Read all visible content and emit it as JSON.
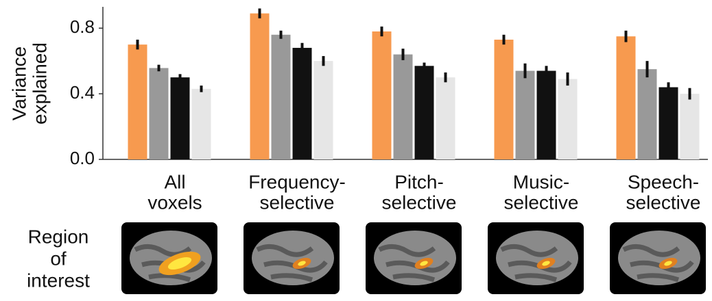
{
  "chart_data": {
    "type": "bar",
    "ylabel": [
      "Variance",
      "explained"
    ],
    "categories": [
      [
        "All",
        "voxels"
      ],
      [
        "Frequency-",
        "selective"
      ],
      [
        "Pitch-",
        "selective"
      ],
      [
        "Music-",
        "selective"
      ],
      [
        "Speech-",
        "selective"
      ]
    ],
    "series": [
      {
        "color": "#f79a4f",
        "values": [
          0.7,
          0.89,
          0.78,
          0.73,
          0.75
        ],
        "errors": [
          0.03,
          0.03,
          0.03,
          0.03,
          0.035
        ]
      },
      {
        "color": "#999999",
        "values": [
          0.557,
          0.76,
          0.64,
          0.54,
          0.55
        ],
        "errors": [
          0.02,
          0.025,
          0.035,
          0.045,
          0.05
        ]
      },
      {
        "color": "#111111",
        "values": [
          0.5,
          0.68,
          0.57,
          0.54,
          0.44
        ],
        "errors": [
          0.02,
          0.03,
          0.02,
          0.03,
          0.03
        ]
      },
      {
        "color": "#e6e6e6",
        "values": [
          0.43,
          0.6,
          0.5,
          0.49,
          0.4
        ],
        "errors": [
          0.02,
          0.03,
          0.03,
          0.04,
          0.035
        ]
      }
    ],
    "ylim": [
      0,
      0.93
    ],
    "yticks": [
      {
        "value": 0,
        "label": "0.0"
      },
      {
        "value": 0.4,
        "label": "0.4"
      },
      {
        "value": 0.8,
        "label": "0.8"
      }
    ],
    "roi_label": [
      "Region",
      "of",
      "interest"
    ]
  }
}
